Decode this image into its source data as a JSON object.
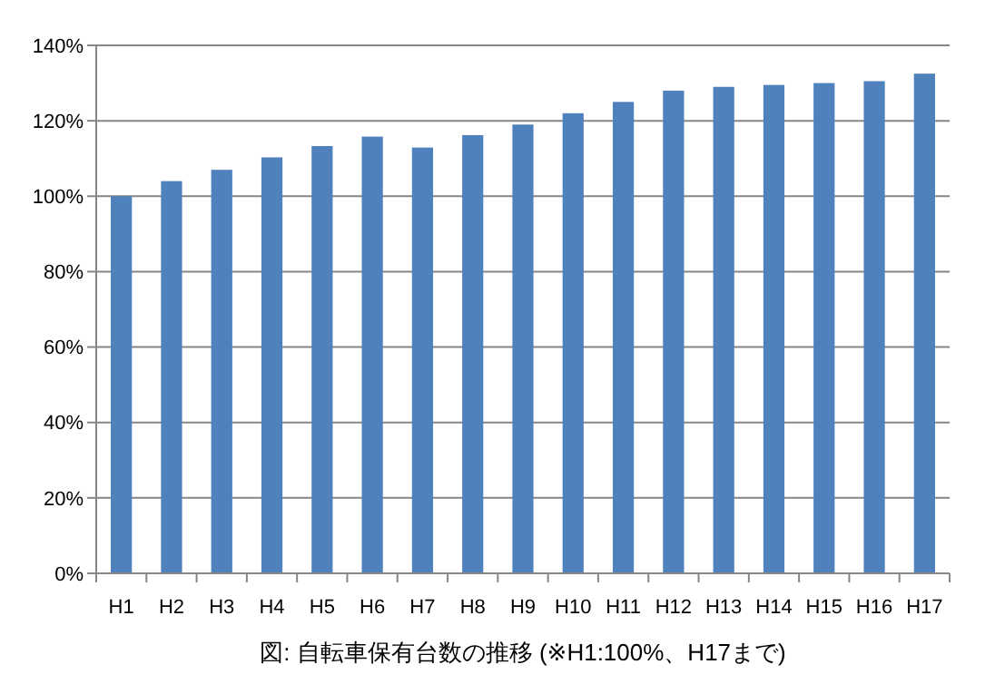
{
  "chart_data": {
    "type": "bar",
    "title": "図: 自転車保有台数の推移 (※H1:100%、H17まで)",
    "categories": [
      "H1",
      "H2",
      "H3",
      "H4",
      "H5",
      "H6",
      "H7",
      "H8",
      "H9",
      "H10",
      "H11",
      "H12",
      "H13",
      "H14",
      "H15",
      "H16",
      "H17"
    ],
    "values": [
      100,
      104,
      107,
      110.3,
      113.3,
      115.8,
      112.9,
      116.2,
      119,
      122,
      125,
      128,
      129,
      129.5,
      130,
      130.5,
      132.5
    ],
    "color": "#4f81bd",
    "ylim": [
      0,
      140
    ],
    "yticks": [
      {
        "value": 0,
        "label": "0%"
      },
      {
        "value": 20,
        "label": "20%"
      },
      {
        "value": 40,
        "label": "40%"
      },
      {
        "value": 60,
        "label": "60%"
      },
      {
        "value": 80,
        "label": "80%"
      },
      {
        "value": 100,
        "label": "100%"
      },
      {
        "value": 120,
        "label": "120%"
      },
      {
        "value": 140,
        "label": "140%"
      }
    ],
    "grid": "y"
  }
}
